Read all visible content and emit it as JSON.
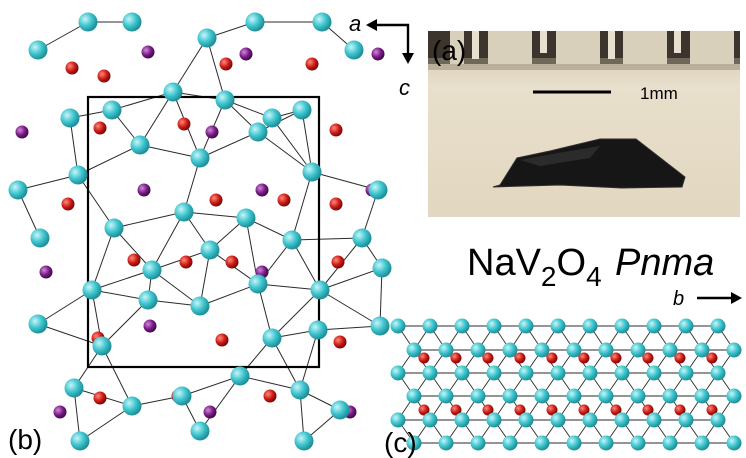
{
  "panels": {
    "a_label": "(a)",
    "b_label": "(b)",
    "c_label": "(c)"
  },
  "axes": {
    "top_horizontal": "a",
    "top_vertical": "c",
    "bottom_horizontal": "b"
  },
  "photo": {
    "scale_label": "1mm"
  },
  "compound": {
    "formula_base": "NaV",
    "formula_sub1": "2",
    "formula_mid": "O",
    "formula_sub2": "4",
    "space_group": "Pnma"
  },
  "colors": {
    "vanadium": "#3fc6cf",
    "oxygen_dot": "#cc1a14",
    "sodium": "#7a1a86",
    "bond": "#2b2b2b",
    "unit_cell": "#000000",
    "photo_bg": "#e6dcc8",
    "ruler_dark": "#2a2620",
    "crystal": "#1a1a1a"
  }
}
